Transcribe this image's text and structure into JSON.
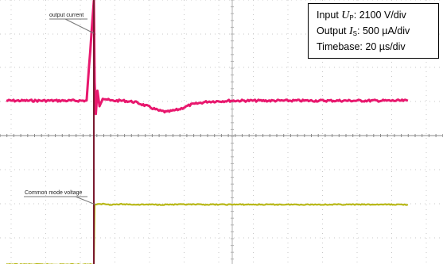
{
  "chart_data": {
    "type": "line",
    "title": "",
    "xlabel": "",
    "ylabel": "",
    "grid": true,
    "grid_divisions": {
      "x": 10,
      "y": 8
    },
    "x_units": "div",
    "xlim": [
      0,
      10
    ],
    "y_units": "div",
    "ylim": [
      0,
      8
    ],
    "trigger_x": 2.18,
    "series": [
      {
        "name": "output current",
        "color": "#e8186e",
        "x": [
          0,
          2.0,
          2.18,
          2.2,
          2.23,
          2.27,
          2.32,
          2.4,
          2.6,
          2.9,
          3.2,
          3.5,
          3.8,
          4.0,
          4.3,
          4.6,
          5.0,
          5.6,
          6.4,
          7.5,
          8.5,
          10
        ],
        "y": [
          5.0,
          5.0,
          8.0,
          5.55,
          4.6,
          5.3,
          4.85,
          5.08,
          5.0,
          5.0,
          4.96,
          4.84,
          4.7,
          4.66,
          4.74,
          4.88,
          4.97,
          5.0,
          5.0,
          5.0,
          5.0,
          5.0
        ]
      },
      {
        "name": "Common mode voltage",
        "color": "#b8b819",
        "x": [
          0,
          2.18,
          2.2,
          2.25,
          2.4,
          2.6,
          2.9,
          3.2,
          3.6,
          4.2,
          5,
          6,
          7,
          8,
          9,
          10
        ],
        "y": [
          0,
          0,
          1.8,
          1.8,
          1.82,
          1.8,
          1.81,
          1.8,
          1.8,
          1.8,
          1.8,
          1.8,
          1.8,
          1.8,
          1.8,
          1.8
        ]
      }
    ],
    "annotations": {
      "output_current_label": "output current",
      "common_mode_label": "Common mode voltage"
    }
  },
  "info": {
    "input_prefix": "Input ",
    "input_var": "U",
    "input_sub": "P",
    "input_value": ": 2100 V/div",
    "output_prefix": "Output ",
    "output_var": "I",
    "output_sub": "S",
    "output_value": ": 500 µA/div",
    "timebase": "Timebase: 20 µs/div"
  }
}
